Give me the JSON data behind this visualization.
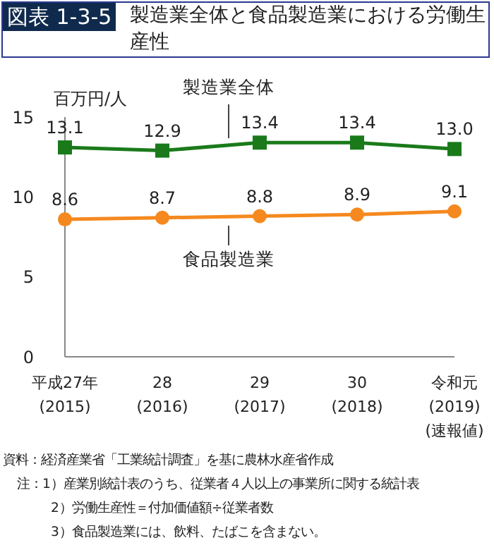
{
  "chart_data": {
    "type": "line",
    "title": "図表 1-3-5",
    "subtitle": "製造業全体と食品製造業における労働生産性",
    "ylabel": "百万円/人",
    "categories": [
      "平成27年\n(2015)",
      "28\n(2016)",
      "29\n(2017)",
      "30\n(2018)",
      "令和元\n(2019)\n(速報値)"
    ],
    "series": [
      {
        "name": "製造業全体",
        "color": "#1a7a1a",
        "marker": "square",
        "values": [
          13.1,
          12.9,
          13.4,
          13.4,
          13.0
        ],
        "value_labels": [
          "13.1",
          "12.9",
          "13.4",
          "13.4",
          "13.0"
        ]
      },
      {
        "name": "食品製造業",
        "color": "#f5891f",
        "marker": "circle",
        "values": [
          8.6,
          8.7,
          8.8,
          8.9,
          9.1
        ],
        "value_labels": [
          "8.6",
          "8.7",
          "8.8",
          "8.9",
          "9.1"
        ]
      }
    ],
    "ylim": [
      0,
      15
    ],
    "yticks": [
      0,
      5,
      10,
      15
    ],
    "grid": false,
    "legend": false,
    "annotations": [
      "資料：経済産業省「工業統計調査」を基に農林水産省作成",
      "注：1）産業別統計表のうち、従業者４人以上の事業所に関する統計表",
      "2）労働生産性＝付加価値額÷従業者数",
      "3）食品製造業には、飲料、たばこを含まない。"
    ]
  }
}
